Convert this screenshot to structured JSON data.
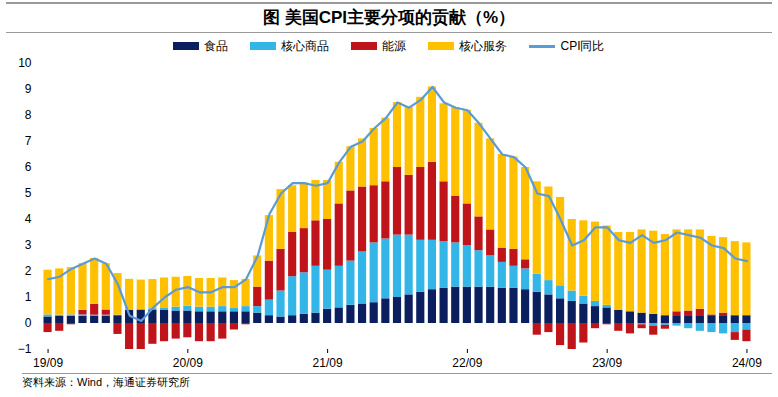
{
  "chart_data": {
    "type": "bar",
    "title": "图  美国CPI主要分项的贡献（%）",
    "source": "资料来源：Wind，海通证券研究所",
    "stacked": true,
    "legend": "top",
    "grid": false,
    "ylim": [
      -1,
      10
    ],
    "yticks": [
      -1,
      0,
      1,
      2,
      3,
      4,
      5,
      6,
      7,
      8,
      9,
      10
    ],
    "categories": [
      "19/09",
      null,
      null,
      null,
      null,
      null,
      null,
      null,
      null,
      null,
      null,
      null,
      "20/09",
      null,
      null,
      null,
      null,
      null,
      null,
      null,
      null,
      null,
      null,
      null,
      "21/09",
      null,
      null,
      null,
      null,
      null,
      null,
      null,
      null,
      null,
      null,
      null,
      "22/09",
      null,
      null,
      null,
      null,
      null,
      null,
      null,
      null,
      null,
      null,
      null,
      "23/09",
      null,
      null,
      null,
      null,
      null,
      null,
      null,
      null,
      null,
      null,
      null,
      "24/09"
    ],
    "series": [
      {
        "name": "食品",
        "color": "#0b1f5e",
        "type": "bar",
        "values": [
          0.25,
          0.27,
          0.28,
          0.28,
          0.27,
          0.27,
          0.3,
          0.5,
          0.52,
          0.52,
          0.5,
          0.48,
          0.48,
          0.45,
          0.45,
          0.45,
          0.45,
          0.45,
          0.4,
          0.3,
          0.25,
          0.3,
          0.35,
          0.4,
          0.55,
          0.6,
          0.7,
          0.75,
          0.8,
          0.95,
          1.0,
          1.1,
          1.2,
          1.3,
          1.35,
          1.4,
          1.4,
          1.4,
          1.4,
          1.35,
          1.35,
          1.3,
          1.2,
          1.1,
          0.95,
          0.85,
          0.75,
          0.65,
          0.6,
          0.5,
          0.45,
          0.4,
          0.35,
          0.3,
          0.3,
          0.3,
          0.3,
          0.3,
          0.3,
          0.3,
          0.3
        ]
      },
      {
        "name": "核心商品",
        "color": "#33b5e8",
        "type": "bar",
        "values": [
          0.08,
          0.05,
          0.05,
          0.05,
          0.05,
          0.05,
          0.02,
          0.0,
          0.0,
          0.05,
          0.1,
          0.15,
          0.18,
          0.18,
          0.18,
          0.2,
          0.15,
          0.2,
          0.25,
          0.6,
          1.0,
          1.5,
          1.6,
          1.8,
          1.5,
          1.6,
          1.7,
          2.0,
          2.3,
          2.3,
          2.4,
          2.3,
          2.0,
          1.9,
          1.8,
          1.7,
          1.6,
          1.4,
          1.2,
          1.0,
          0.85,
          0.8,
          0.7,
          0.55,
          0.5,
          0.4,
          0.3,
          0.2,
          0.1,
          0.0,
          0.0,
          -0.05,
          -0.1,
          -0.07,
          -0.1,
          -0.2,
          -0.3,
          -0.35,
          -0.4,
          -0.35,
          -0.25
        ]
      },
      {
        "name": "能源",
        "color": "#c0141b",
        "type": "bar",
        "values": [
          -0.35,
          -0.3,
          -0.05,
          0.18,
          0.42,
          0.2,
          -0.42,
          -1.0,
          -1.0,
          -0.8,
          -0.7,
          -0.6,
          -0.55,
          -0.7,
          -0.7,
          -0.6,
          -0.25,
          -0.05,
          0.75,
          1.5,
          1.6,
          1.7,
          1.7,
          1.75,
          1.95,
          2.4,
          2.7,
          2.5,
          2.2,
          2.2,
          2.6,
          2.3,
          2.8,
          3.0,
          2.3,
          1.8,
          1.6,
          1.3,
          1.0,
          0.55,
          0.65,
          0.35,
          -0.45,
          -0.35,
          -0.85,
          -1.0,
          -0.75,
          -0.2,
          -0.05,
          -0.3,
          -0.4,
          -0.15,
          -0.35,
          -0.15,
          0.15,
          0.18,
          0.25,
          0.03,
          0.1,
          -0.3,
          -0.45
        ]
      },
      {
        "name": "核心服务",
        "color": "#ffc000",
        "type": "bar",
        "values": [
          1.72,
          1.78,
          1.82,
          1.79,
          1.76,
          1.78,
          1.6,
          1.2,
          1.15,
          1.12,
          1.15,
          1.15,
          1.15,
          1.1,
          1.1,
          1.1,
          1.05,
          1.05,
          1.2,
          1.75,
          2.3,
          1.8,
          1.75,
          1.55,
          1.5,
          1.6,
          1.7,
          1.85,
          2.2,
          2.45,
          2.5,
          2.6,
          2.7,
          2.9,
          3.0,
          3.4,
          3.6,
          3.6,
          3.5,
          3.6,
          3.55,
          3.55,
          3.55,
          3.6,
          3.4,
          2.75,
          2.9,
          3.05,
          3.05,
          3.0,
          3.05,
          3.2,
          3.2,
          3.12,
          3.15,
          3.12,
          3.05,
          3.02,
          2.9,
          2.85,
          2.8
        ]
      },
      {
        "name": "CPI同比",
        "color": "#5b9bd5",
        "type": "line",
        "values": [
          1.7,
          1.8,
          2.1,
          2.3,
          2.5,
          2.3,
          1.5,
          0.3,
          0.1,
          0.6,
          1.0,
          1.3,
          1.4,
          1.2,
          1.2,
          1.4,
          1.4,
          1.7,
          2.6,
          4.2,
          5.0,
          5.4,
          5.4,
          5.3,
          5.4,
          6.2,
          6.8,
          7.0,
          7.5,
          7.9,
          8.5,
          8.3,
          8.6,
          9.1,
          8.5,
          8.3,
          8.2,
          7.7,
          7.1,
          6.5,
          6.4,
          6.0,
          5.0,
          4.9,
          4.0,
          3.0,
          3.2,
          3.7,
          3.7,
          3.2,
          3.1,
          3.4,
          3.1,
          3.2,
          3.5,
          3.4,
          3.3,
          3.0,
          2.9,
          2.5,
          2.4
        ]
      }
    ]
  }
}
